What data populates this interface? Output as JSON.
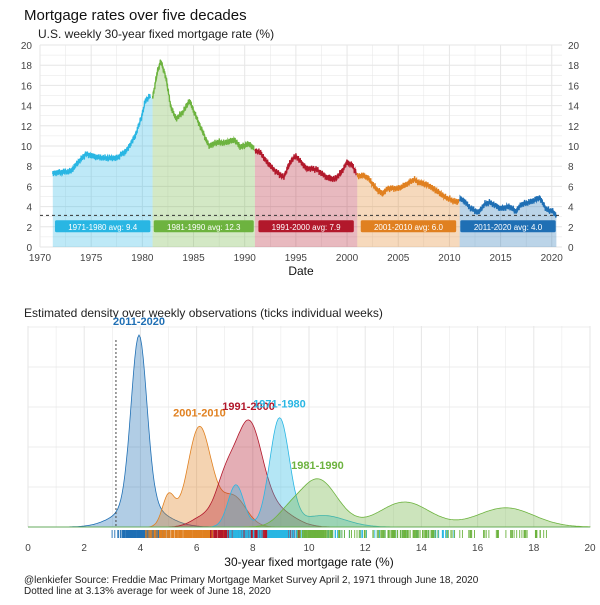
{
  "title": "Mortgage rates over five decades",
  "subtitle": "U.S. weekly 30-year fixed mortgage rate (%)",
  "caption_line1": "@lenkiefer Source: Freddie Mac Primary Mortgage Market Survey April 2, 1971 through June 18, 2020",
  "caption_line2": "Dotted line at 3.13% average for week of June 18, 2020",
  "colors": {
    "1971-1980": "#29b6e3",
    "1981-1990": "#6db33f",
    "1991-2000": "#b2182b",
    "2001-2010": "#e08020",
    "2011-2020": "#1f6fb4",
    "grid": "#e6e6e6"
  },
  "chart_data": [
    {
      "type": "line",
      "title": "",
      "xlabel": "Date",
      "ylabel": "",
      "xlim": [
        1970,
        2021
      ],
      "ylim": [
        0,
        20
      ],
      "x_ticks": [
        1970,
        1975,
        1980,
        1985,
        1990,
        1995,
        2000,
        2005,
        2010,
        2015,
        2020
      ],
      "y_ticks": [
        0,
        2,
        4,
        6,
        8,
        10,
        12,
        14,
        16,
        18,
        20
      ],
      "reference_line": 3.13,
      "series": [
        {
          "decade": "1971-1980",
          "avg_label": "1971-1980 avg:  9.4",
          "x": [
            1971.25,
            1972,
            1973,
            1973.8,
            1974.5,
            1975.5,
            1976.5,
            1977.5,
            1978.5,
            1979.3,
            1979.9,
            1980.3,
            1980.8
          ],
          "y": [
            7.3,
            7.4,
            7.5,
            8.5,
            9.2,
            8.9,
            8.8,
            8.8,
            9.6,
            11.0,
            12.8,
            14.5,
            15.0
          ]
        },
        {
          "decade": "1981-1990",
          "avg_label": "1981-1990 avg:  12.3",
          "x": [
            1981,
            1981.5,
            1981.8,
            1982.3,
            1982.8,
            1983.3,
            1984,
            1984.6,
            1985.5,
            1986.5,
            1987.4,
            1988,
            1989,
            1989.6,
            1990.4,
            1990.9
          ],
          "y": [
            14.8,
            17.5,
            18.4,
            16.8,
            13.8,
            12.7,
            13.4,
            14.5,
            12.3,
            10.0,
            10.4,
            10.3,
            10.6,
            9.9,
            10.2,
            9.8
          ]
        },
        {
          "decade": "1991-2000",
          "avg_label": "1991-2000 avg:  7.9",
          "x": [
            1991,
            1991.6,
            1992,
            1993,
            1993.8,
            1994.5,
            1995,
            1996,
            1997,
            1998,
            1998.8,
            1999.5,
            2000,
            2000.5,
            2000.9
          ],
          "y": [
            9.6,
            9.3,
            8.6,
            7.5,
            6.9,
            8.5,
            9.0,
            7.8,
            7.7,
            6.9,
            6.7,
            7.5,
            8.4,
            8.1,
            7.3
          ]
        },
        {
          "decade": "2001-2010",
          "avg_label": "2001-2010 avg:  6.0",
          "x": [
            2001,
            2001.5,
            2002,
            2003,
            2003.5,
            2004,
            2005,
            2006,
            2006.5,
            2007,
            2008,
            2008.8,
            2009.5,
            2010.5,
            2010.9
          ],
          "y": [
            7.0,
            7.1,
            6.9,
            5.6,
            5.3,
            5.8,
            5.8,
            6.3,
            6.7,
            6.4,
            6.1,
            5.5,
            5.0,
            4.5,
            4.5
          ]
        },
        {
          "decade": "2011-2020",
          "avg_label": "2011-2020 avg:  4.0",
          "x": [
            2011,
            2011.5,
            2012,
            2012.8,
            2013.5,
            2014,
            2015,
            2015.9,
            2016.5,
            2017,
            2018,
            2018.8,
            2019.5,
            2020,
            2020.45
          ],
          "y": [
            4.8,
            4.5,
            3.9,
            3.4,
            4.3,
            4.4,
            3.8,
            4.0,
            3.5,
            4.2,
            4.5,
            4.9,
            3.7,
            3.6,
            3.1
          ]
        }
      ]
    },
    {
      "type": "area",
      "title": "Estimated density over weekly observations (ticks individual weeks)",
      "xlabel": "30-year fixed mortgage rate (%)",
      "ylabel": "",
      "xlim": [
        0,
        20
      ],
      "x_ticks": [
        0,
        2,
        4,
        6,
        8,
        10,
        12,
        14,
        16,
        18,
        20
      ],
      "reference_line": 3.13,
      "density_peak_max": 1.0,
      "series": [
        {
          "name": "2011-2020",
          "components": [
            [
              0.88,
              3.95,
              0.28
            ],
            [
              0.12,
              4.0,
              0.8
            ]
          ]
        },
        {
          "name": "2001-2010",
          "components": [
            [
              0.52,
              6.1,
              0.42
            ],
            [
              0.16,
              5.0,
              0.22
            ],
            [
              0.16,
              7.3,
              0.45
            ]
          ]
        },
        {
          "name": "1991-2000",
          "components": [
            [
              0.53,
              7.85,
              0.48
            ],
            [
              0.2,
              7.0,
              0.35
            ],
            [
              0.08,
              8.9,
              0.6
            ],
            [
              0.05,
              6.2,
              0.4
            ]
          ]
        },
        {
          "name": "1971-1980",
          "components": [
            [
              0.56,
              8.95,
              0.35
            ],
            [
              0.22,
              7.4,
              0.28
            ],
            [
              0.06,
              10.5,
              0.8
            ]
          ]
        },
        {
          "name": "1981-1990",
          "components": [
            [
              0.25,
              10.3,
              0.7
            ],
            [
              0.13,
              13.4,
              0.9
            ],
            [
              0.1,
              17.0,
              1.0
            ],
            [
              0.04,
              9.2,
              0.4
            ]
          ]
        }
      ],
      "labels": [
        {
          "text": "2011-2020",
          "series": "2011-2020"
        },
        {
          "text": "2001-2010",
          "series": "2001-2010"
        },
        {
          "text": "1991-2000",
          "series": "1991-2000"
        },
        {
          "text": "1971-1980",
          "series": "1971-1980"
        },
        {
          "text": "1981-1990",
          "series": "1981-1990"
        }
      ]
    }
  ]
}
